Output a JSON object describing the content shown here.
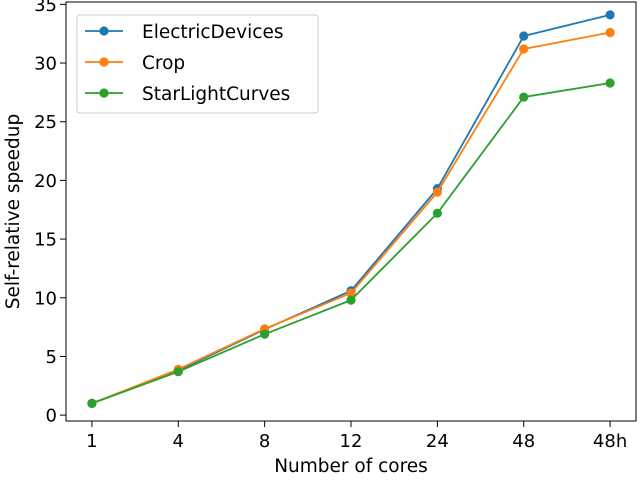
{
  "chart_data": {
    "type": "line",
    "title": "",
    "xlabel": "Number of cores",
    "ylabel": "Self-relative speedup",
    "categories": [
      "1",
      "4",
      "8",
      "12",
      "24",
      "48",
      "48h"
    ],
    "ylim": [
      -0.5,
      35.2
    ],
    "yticks": [
      0,
      5,
      10,
      15,
      20,
      25,
      30,
      35
    ],
    "legend_position": "top-left",
    "series": [
      {
        "name": "ElectricDevices",
        "color": "#1f77b4",
        "values": [
          1.0,
          3.8,
          7.3,
          10.6,
          19.3,
          32.3,
          34.1
        ]
      },
      {
        "name": "Crop",
        "color": "#ff7f0e",
        "values": [
          1.0,
          3.9,
          7.35,
          10.4,
          19.0,
          31.2,
          32.6
        ]
      },
      {
        "name": "StarLightCurves",
        "color": "#2ca02c",
        "values": [
          1.0,
          3.7,
          6.9,
          9.8,
          17.2,
          27.1,
          28.3
        ]
      }
    ]
  }
}
